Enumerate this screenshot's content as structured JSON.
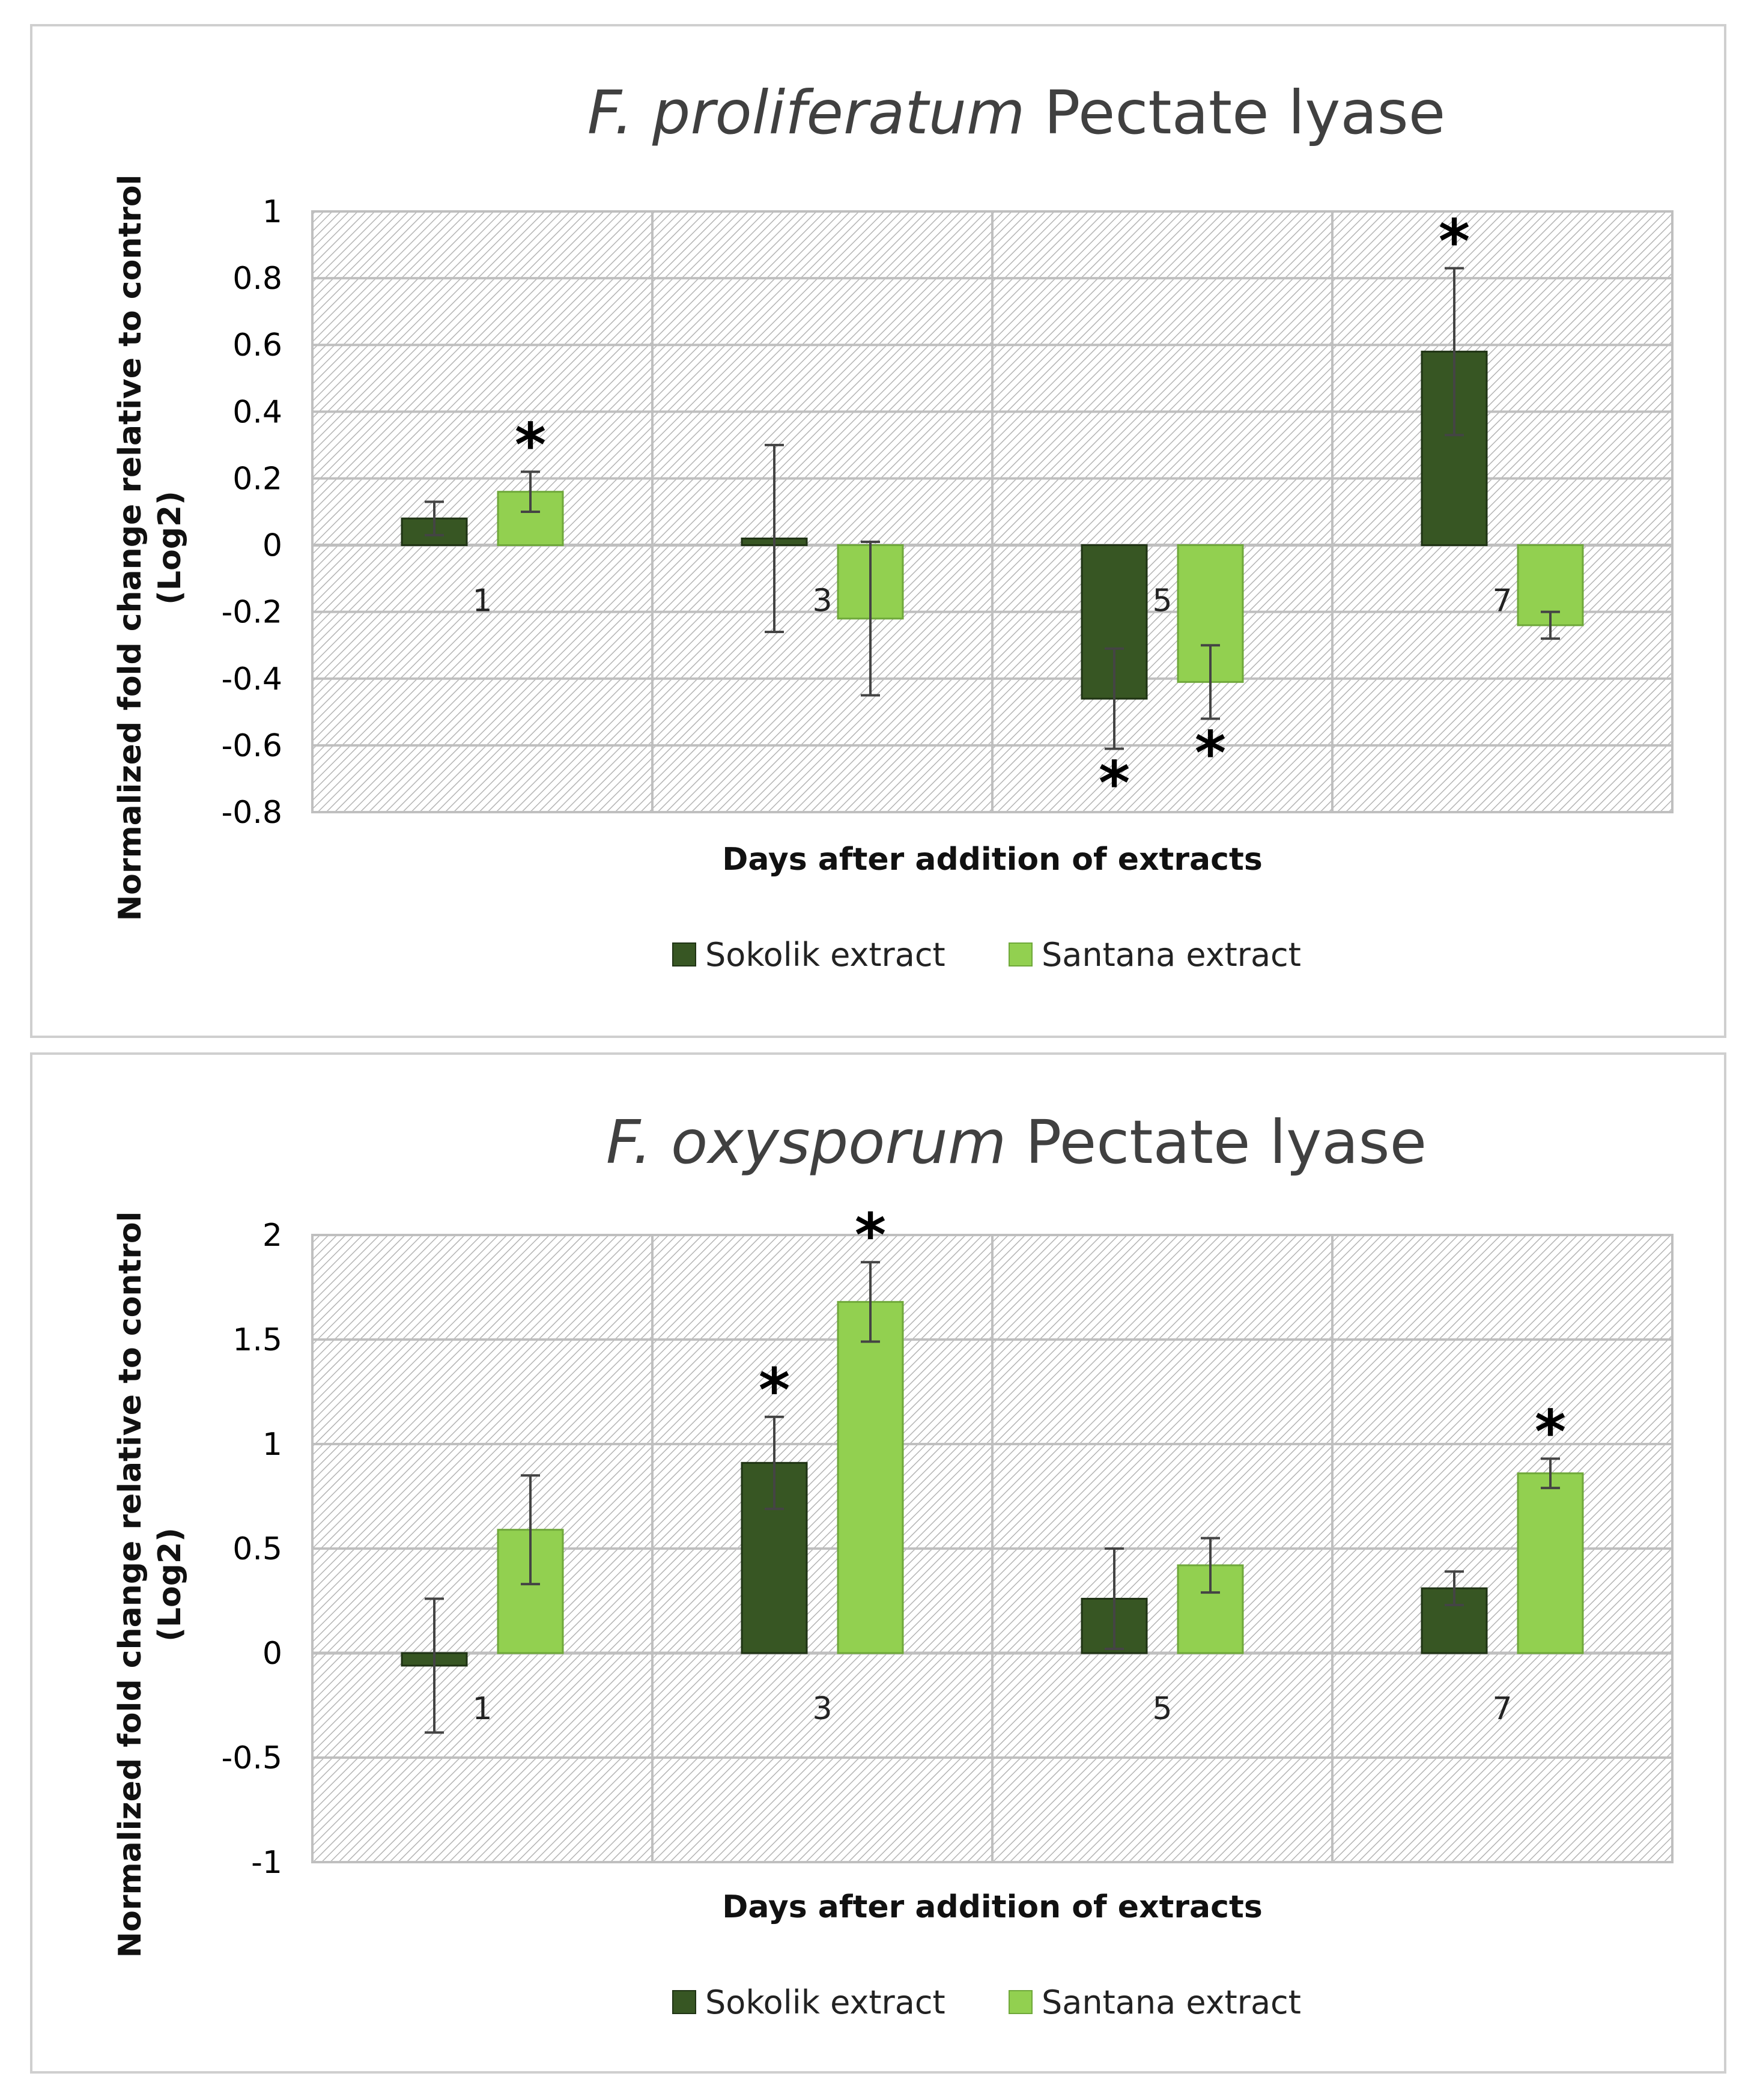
{
  "chart_data": [
    {
      "type": "bar",
      "title_italic": "F. proliferatum",
      "title_rest": " Pectate lyase",
      "xlabel": "Days after addition of extracts",
      "ylabel_line1": "Normalized fold change  relative to control",
      "ylabel_line2": "(Log2)",
      "ylim": [
        -0.8,
        1
      ],
      "ytick_step": 0.2,
      "yticks": [
        "1",
        "0.8",
        "0.6",
        "0.4",
        "0.2",
        "0",
        "-0.2",
        "-0.4",
        "-0.6",
        "-0.8"
      ],
      "categories": [
        "1",
        "3",
        "5",
        "7"
      ],
      "series": [
        {
          "name": "Sokolik extract",
          "color": "#375623",
          "values": [
            0.08,
            0.02,
            -0.46,
            0.58
          ],
          "errors": [
            0.05,
            0.28,
            0.15,
            0.25
          ],
          "significant": [
            false,
            false,
            true,
            true
          ],
          "star_pos": [
            "above",
            "above",
            "below",
            "above"
          ]
        },
        {
          "name": "Santana extract",
          "color": "#92d050",
          "values": [
            0.16,
            -0.22,
            -0.41,
            -0.24
          ],
          "errors": [
            0.06,
            0.23,
            0.11,
            0.04
          ],
          "significant": [
            true,
            false,
            true,
            false
          ],
          "star_pos": [
            "above",
            "above",
            "below",
            "above"
          ]
        }
      ]
    },
    {
      "type": "bar",
      "title_italic": "F. oxysporum",
      "title_rest": " Pectate lyase",
      "xlabel": "Days after addition of extracts",
      "ylabel_line1": "Normalized fold change  relative to control",
      "ylabel_line2": "(Log2)",
      "ylim": [
        -1,
        2
      ],
      "ytick_step": 0.5,
      "yticks": [
        "2",
        "1.5",
        "1",
        "0.5",
        "0",
        "-0.5",
        "-1"
      ],
      "categories": [
        "1",
        "3",
        "5",
        "7"
      ],
      "series": [
        {
          "name": "Sokolik extract",
          "color": "#375623",
          "values": [
            -0.06,
            0.91,
            0.26,
            0.31
          ],
          "errors": [
            0.32,
            0.22,
            0.24,
            0.08
          ],
          "significant": [
            false,
            true,
            false,
            false
          ],
          "star_pos": [
            "above",
            "above",
            "above",
            "above"
          ]
        },
        {
          "name": "Santana extract",
          "color": "#92d050",
          "values": [
            0.59,
            1.68,
            0.42,
            0.86
          ],
          "errors": [
            0.26,
            0.19,
            0.13,
            0.07
          ],
          "significant": [
            false,
            true,
            false,
            true
          ],
          "star_pos": [
            "above",
            "above",
            "above",
            "above"
          ]
        }
      ]
    }
  ]
}
